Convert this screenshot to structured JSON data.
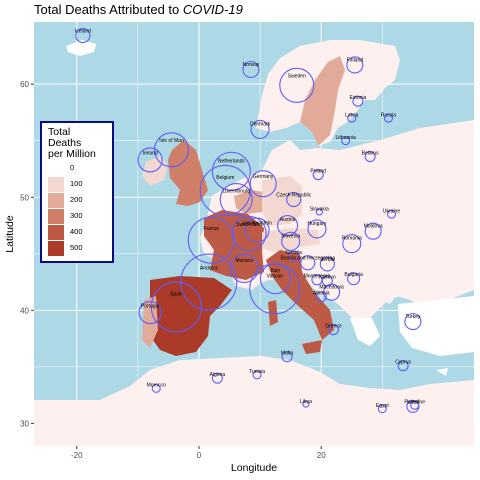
{
  "title_main": "Total Deaths Attributed to ",
  "title_ital": "COVID-19",
  "chart_data": {
    "type": "map",
    "xlabel": "Longitude",
    "ylabel": "Latitude",
    "xlim": [
      -27,
      45
    ],
    "ylim": [
      28,
      65.5
    ],
    "xticks": [
      -20,
      0,
      20
    ],
    "yticks": [
      30,
      40,
      50,
      60
    ],
    "grid": true,
    "legend": {
      "title": "Total Deaths\n per Million",
      "placement": "left",
      "items": [
        {
          "label": "0",
          "color": "#ffffff"
        },
        {
          "label": "100",
          "color": "#f2d8d0"
        },
        {
          "label": "200",
          "color": "#e2aa99"
        },
        {
          "label": "300",
          "color": "#cf7e68"
        },
        {
          "label": "400",
          "color": "#bc5a45"
        },
        {
          "label": "500",
          "color": "#ac3a29"
        }
      ]
    },
    "countries": [
      {
        "name": "Iceland",
        "lon": -19.0,
        "lat": 64.3,
        "r": 7,
        "level": 0
      },
      {
        "name": "Norway",
        "lon": 8.5,
        "lat": 61.3,
        "r": 8,
        "level": 0
      },
      {
        "name": "Sweden",
        "lon": 16.0,
        "lat": 59.9,
        "r": 17,
        "level": 3
      },
      {
        "name": "Finland",
        "lon": 25.5,
        "lat": 61.7,
        "r": 8,
        "level": 0
      },
      {
        "name": "Estonia",
        "lon": 26.0,
        "lat": 58.5,
        "r": 5,
        "level": 0
      },
      {
        "name": "Latvia",
        "lon": 25.0,
        "lat": 57.0,
        "r": 4,
        "level": 0
      },
      {
        "name": "Russia",
        "lon": 31.0,
        "lat": 57.0,
        "r": 4,
        "level": 0
      },
      {
        "name": "Denmark",
        "lon": 10.0,
        "lat": 56.0,
        "r": 9,
        "level": 1
      },
      {
        "name": "Lithuania",
        "lon": 24.0,
        "lat": 55.0,
        "r": 4,
        "level": 0
      },
      {
        "name": "Belarus",
        "lon": 28.0,
        "lat": 53.6,
        "r": 5,
        "level": 0
      },
      {
        "name": "Ireland",
        "lon": -8.0,
        "lat": 53.3,
        "r": 12,
        "level": 1
      },
      {
        "name": "Isle of Man",
        "lon": -4.5,
        "lat": 54.2,
        "r": 17,
        "level": 3
      },
      {
        "name": "Netherlands",
        "lon": 5.3,
        "lat": 52.3,
        "r": 19,
        "level": 2
      },
      {
        "name": "Poland",
        "lon": 19.5,
        "lat": 52.0,
        "r": 5,
        "level": 0
      },
      {
        "name": "Germany",
        "lon": 10.5,
        "lat": 51.2,
        "r": 13,
        "level": 1
      },
      {
        "name": "Belgium",
        "lon": 4.3,
        "lat": 50.6,
        "r": 25,
        "level": 5
      },
      {
        "name": "Luxembourg",
        "lon": 6.1,
        "lat": 49.8,
        "r": 16,
        "level": 2
      },
      {
        "name": "Czech Republic",
        "lon": 15.5,
        "lat": 49.8,
        "r": 7,
        "level": 0
      },
      {
        "name": "Slovakia",
        "lon": 19.7,
        "lat": 48.7,
        "r": 3,
        "level": 0
      },
      {
        "name": "Ukraine",
        "lon": 31.5,
        "lat": 48.5,
        "r": 4,
        "level": 0
      },
      {
        "name": "Liechtenstein",
        "lon": 9.5,
        "lat": 47.1,
        "r": 12,
        "level": 2
      },
      {
        "name": "Austria",
        "lon": 14.5,
        "lat": 47.5,
        "r": 10,
        "level": 1
      },
      {
        "name": "Switzerland",
        "lon": 8.2,
        "lat": 46.8,
        "r": 17,
        "level": 2
      },
      {
        "name": "Hungary",
        "lon": 19.3,
        "lat": 47.2,
        "r": 9,
        "level": 0
      },
      {
        "name": "Moldova",
        "lon": 28.5,
        "lat": 47.0,
        "r": 8,
        "level": 0
      },
      {
        "name": "Romania",
        "lon": 25.0,
        "lat": 45.9,
        "r": 9,
        "level": 0
      },
      {
        "name": "France",
        "lon": 2.0,
        "lat": 46.2,
        "r": 23,
        "level": 4
      },
      {
        "name": "Slovenia",
        "lon": 15.0,
        "lat": 46.1,
        "r": 9,
        "level": 0
      },
      {
        "name": "Bosnia and Herzegovina",
        "lon": 17.8,
        "lat": 44.2,
        "r": 7,
        "level": 0
      },
      {
        "name": "Croatia",
        "lon": 15.5,
        "lat": 44.8,
        "r": 5,
        "level": 0
      },
      {
        "name": "Monaco",
        "lon": 7.4,
        "lat": 43.7,
        "r": 14,
        "level": 2
      },
      {
        "name": "Serbia",
        "lon": 21.0,
        "lat": 44.1,
        "r": 7,
        "level": 0
      },
      {
        "name": "Bulgaria",
        "lon": 25.3,
        "lat": 42.8,
        "r": 6,
        "level": 0
      },
      {
        "name": "Montenegro",
        "lon": 19.3,
        "lat": 42.7,
        "r": 5,
        "level": 0
      },
      {
        "name": "Andorra",
        "lon": 1.6,
        "lat": 42.5,
        "r": 28,
        "level": 3
      },
      {
        "name": "Italy",
        "lon": 12.5,
        "lat": 42.8,
        "r": 15,
        "level": 4
      },
      {
        "name": "Vatican",
        "lon": 12.4,
        "lat": 41.9,
        "r": 25,
        "level": 4
      },
      {
        "name": "Kosovo",
        "lon": 21.0,
        "lat": 42.6,
        "r": 5,
        "level": 0
      },
      {
        "name": "Macedonia",
        "lon": 21.7,
        "lat": 41.6,
        "r": 8,
        "level": 0
      },
      {
        "name": "Albania",
        "lon": 20.0,
        "lat": 41.2,
        "r": 5,
        "level": 0
      },
      {
        "name": "Spain",
        "lon": -3.7,
        "lat": 40.3,
        "r": 25,
        "level": 5
      },
      {
        "name": "Portugal",
        "lon": -8.0,
        "lat": 39.8,
        "r": 11,
        "level": 1
      },
      {
        "name": "Turkey",
        "lon": 35.0,
        "lat": 39.0,
        "r": 8,
        "level": 0
      },
      {
        "name": "Greece",
        "lon": 22.0,
        "lat": 38.3,
        "r": 5,
        "level": 0
      },
      {
        "name": "Malta",
        "lon": 14.4,
        "lat": 35.9,
        "r": 5,
        "level": 0
      },
      {
        "name": "Cyprus",
        "lon": 33.4,
        "lat": 35.1,
        "r": 5,
        "level": 0
      },
      {
        "name": "Algeria",
        "lon": 3.0,
        "lat": 34.0,
        "r": 5,
        "level": 0
      },
      {
        "name": "Tunisia",
        "lon": 9.5,
        "lat": 34.3,
        "r": 4,
        "level": 0
      },
      {
        "name": "Morocco",
        "lon": -7.0,
        "lat": 33.1,
        "r": 4,
        "level": 0
      },
      {
        "name": "Libya",
        "lon": 17.5,
        "lat": 31.7,
        "r": 3,
        "level": 0
      },
      {
        "name": "Egypt",
        "lon": 30.0,
        "lat": 31.3,
        "r": 4,
        "level": 0
      },
      {
        "name": "Israel",
        "lon": 35.0,
        "lat": 31.5,
        "r": 6,
        "level": 0
      },
      {
        "name": "Palestine",
        "lon": 35.3,
        "lat": 31.6,
        "r": 4,
        "level": 0
      }
    ]
  }
}
